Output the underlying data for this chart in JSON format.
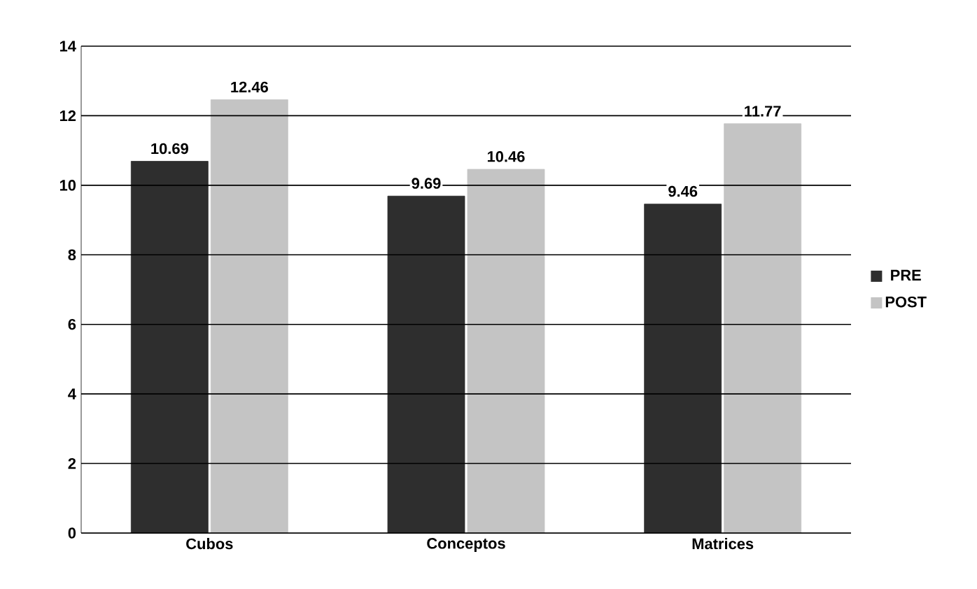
{
  "chart_data": {
    "type": "bar",
    "categories": [
      "Cubos",
      "Conceptos",
      "Matrices"
    ],
    "series": [
      {
        "name": "PRE",
        "color": "#2e2e2e",
        "values": [
          10.69,
          9.69,
          9.46
        ]
      },
      {
        "name": "POST",
        "color": "#c4c4c4",
        "values": [
          12.46,
          10.46,
          11.77
        ]
      }
    ],
    "ylim": [
      0,
      14
    ],
    "yticks": [
      0,
      2,
      4,
      6,
      8,
      10,
      12,
      14
    ],
    "grid": "y",
    "legend": "right",
    "data_labels": true
  }
}
